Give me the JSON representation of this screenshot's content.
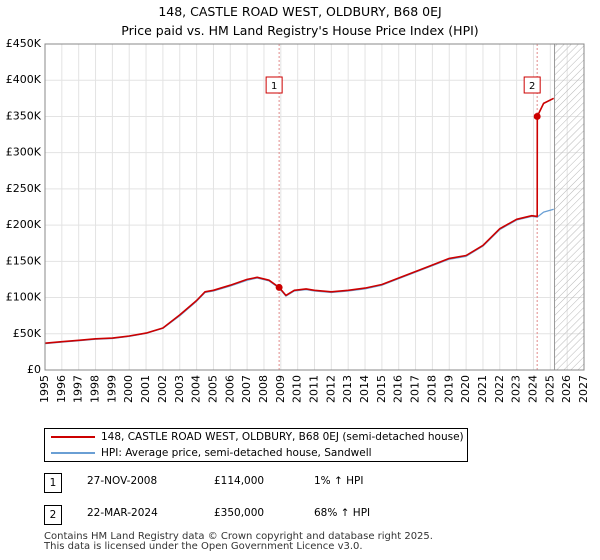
{
  "chart_data": {
    "type": "line",
    "title": "148, CASTLE ROAD WEST, OLDBURY, B68 0EJ",
    "subtitle": "Price paid vs. HM Land Registry's House Price Index (HPI)",
    "xlabel": "",
    "ylabel": "",
    "xlim": [
      1995,
      2027
    ],
    "ylim": [
      0,
      450000
    ],
    "x_ticks": [
      1995,
      1996,
      1997,
      1998,
      1999,
      2000,
      2001,
      2002,
      2003,
      2004,
      2005,
      2006,
      2007,
      2008,
      2009,
      2010,
      2011,
      2012,
      2013,
      2014,
      2015,
      2016,
      2017,
      2018,
      2019,
      2020,
      2021,
      2022,
      2023,
      2024,
      2025,
      2026,
      2027
    ],
    "y_ticks": [
      {
        "value": 0,
        "label": "£0"
      },
      {
        "value": 50000,
        "label": "£50K"
      },
      {
        "value": 100000,
        "label": "£100K"
      },
      {
        "value": 150000,
        "label": "£150K"
      },
      {
        "value": 200000,
        "label": "£200K"
      },
      {
        "value": 250000,
        "label": "£250K"
      },
      {
        "value": 300000,
        "label": "£300K"
      },
      {
        "value": 350000,
        "label": "£350K"
      },
      {
        "value": 400000,
        "label": "£400K"
      },
      {
        "value": 450000,
        "label": "£450K"
      }
    ],
    "grid": true,
    "hatch_from": 2025.25,
    "series": [
      {
        "name": "148, CASTLE ROAD WEST, OLDBURY, B68 0EJ (semi-detached house)",
        "color": "#cc0000",
        "x": [
          1995,
          1996,
          1997,
          1998,
          1999,
          2000,
          2001,
          2002,
          2003,
          2004,
          2004.5,
          2005,
          2006,
          2007,
          2007.6,
          2008.3,
          2008.9,
          2009.3,
          2009.8,
          2010.5,
          2011,
          2012,
          2013,
          2014,
          2015,
          2016,
          2017,
          2018,
          2019,
          2020,
          2021,
          2022,
          2023,
          2023.9,
          2024.22,
          2024.23,
          2024.6,
          2025.2
        ],
        "values": [
          37000,
          39000,
          41000,
          43000,
          44000,
          47000,
          51000,
          58000,
          76000,
          96000,
          108000,
          110000,
          117000,
          125000,
          128000,
          124000,
          114000,
          103000,
          110000,
          112000,
          110000,
          108000,
          110000,
          113000,
          118000,
          127000,
          136000,
          145000,
          154000,
          158000,
          172000,
          195000,
          208000,
          213000,
          212000,
          350000,
          368000,
          375000
        ]
      },
      {
        "name": "HPI: Average price, semi-detached house, Sandwell",
        "color": "#6a9fd4",
        "x": [
          1995,
          1996,
          1997,
          1998,
          1999,
          2000,
          2001,
          2002,
          2003,
          2004,
          2004.5,
          2005,
          2006,
          2007,
          2007.6,
          2008.3,
          2008.9,
          2009.3,
          2009.8,
          2010.5,
          2011,
          2012,
          2013,
          2014,
          2015,
          2016,
          2017,
          2018,
          2019,
          2020,
          2021,
          2022,
          2023,
          2023.9,
          2024.22,
          2024.6,
          2025.2
        ],
        "values": [
          36500,
          38500,
          40500,
          42500,
          43500,
          46500,
          50500,
          57500,
          75000,
          95000,
          107000,
          109000,
          116000,
          124000,
          127000,
          123000,
          113000,
          102000,
          109000,
          111000,
          109000,
          107000,
          109000,
          112000,
          117000,
          126000,
          135000,
          144000,
          153000,
          157000,
          171000,
          194000,
          207000,
          212000,
          211000,
          218000,
          222000
        ]
      }
    ],
    "annotations": [
      {
        "id": "1",
        "x": 2008.9,
        "price": 114000
      },
      {
        "id": "2",
        "x": 2024.22,
        "price": 350000
      }
    ]
  },
  "legend": {
    "items": [
      {
        "label": "148, CASTLE ROAD WEST, OLDBURY, B68 0EJ (semi-detached house)",
        "color": "#cc0000"
      },
      {
        "label": "HPI: Average price, semi-detached house, Sandwell",
        "color": "#6a9fd4"
      }
    ]
  },
  "sales": [
    {
      "id": "1",
      "date": "27-NOV-2008",
      "price": "£114,000",
      "hpi": "1% ↑ HPI"
    },
    {
      "id": "2",
      "date": "22-MAR-2024",
      "price": "£350,000",
      "hpi": "68% ↑ HPI"
    }
  ],
  "footer": {
    "line1": "Contains HM Land Registry data © Crown copyright and database right 2025.",
    "line2": "This data is licensed under the Open Government Licence v3.0."
  }
}
